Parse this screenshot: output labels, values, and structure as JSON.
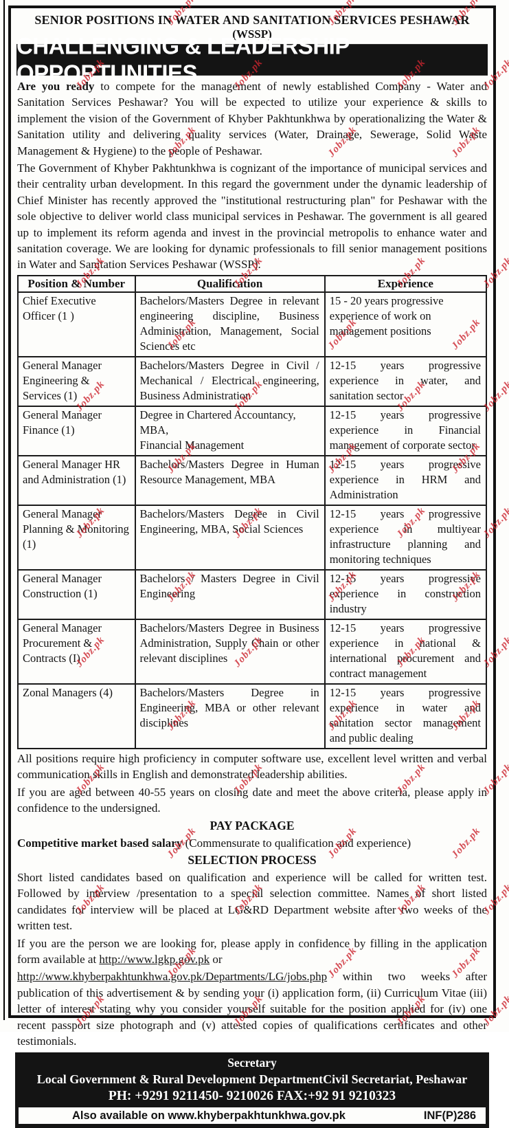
{
  "watermark": {
    "text": "Jobz.pk",
    "color": "#cc2630"
  },
  "header": {
    "title_line1": "SENIOR POSITIONS IN WATER AND SANITATION SERVICES PESHAWAR",
    "title_line2": "(WSSP)",
    "banner": "CHALLENGING & LEADERSHIP OPPORTUNITIES"
  },
  "intro": {
    "p1_lead": "Are you ready",
    "p1_rest": " to compete for the management of newly established Company - Water and Sanitation Services Peshawar? You will be expected to utilize your experience & skills to implement the vision of the Government of Khyber Pakhtunkhwa by operationalizing the Water & Sanitation utility and delivering quality services (Water, Drainage, Sewerage, Solid Waste Management & Hygiene) to the people of Peshawar.",
    "p2": "The Government of Khyber Pakhtunkhwa is cognizant of the importance of municipal services and their centrality urban development. In this regard the government under the dynamic leadership of Chief Minister has recently approved the \"institutional restructuring plan\" for Peshawar with the sole objective to deliver world class municipal services in Peshawar. The government is all geared up to implement its reform agenda and invest in the provincial metropolis to enhance water and sanitation coverage. We are looking for dynamic professionals to fill senior management positions in Water and Sanitation Services Peshawar (WSSP)."
  },
  "table": {
    "headers": [
      "Position & Number",
      "Qualification",
      "Experience"
    ],
    "rows": [
      {
        "position": "Chief Executive Officer (1 )",
        "qualification": "Bachelors/Masters Degree in relevant engineering discipline, Business Administration, Management, Social Sciences etc",
        "experience": "15 - 20 years progressive\nexperience of work on\nmanagement positions"
      },
      {
        "position": "General Manager Engineering & Services (1)",
        "qualification": "Bachelors/Masters Degree in Civil / Mechanical / Electrical engineering, Business Administration",
        "experience": "12-15 years progressive experience in water, and sanitation sector"
      },
      {
        "position": "General Manager Finance (1)",
        "qualification": "Degree in Chartered Accountancy,\nMBA,\nFinancial Management",
        "experience": "12-15 years progressive experience in Financial management of corporate sector"
      },
      {
        "position": "General Manager HR and Administration (1)",
        "qualification": "Bachelors/Masters Degree in Human Resource Management, MBA",
        "experience": "12-15 years progressive experience in HRM and Administration"
      },
      {
        "position": "General Manager Planning & Monitoring (1)",
        "qualification": "Bachelors/Masters Degree in Civil Engineering, MBA, Social Sciences",
        "experience": "12-15 years progressive experience in multiyear infrastructure planning and monitoring techniques"
      },
      {
        "position": "General Manager Construction (1)",
        "qualification": "Bachelors / Masters Degree in Civil Engineering",
        "experience": "12-15 years progressive experience in construction industry"
      },
      {
        "position": "General Manager Procurement & Contracts (I)",
        "qualification": "Bachelors/Masters Degree in Business Administration, Supply Chain or other relevant disciplines",
        "experience": "12-15 years progressive experience in national & international procurement and contract management"
      },
      {
        "position": "Zonal Managers (4)",
        "qualification": "Bachelors/Masters Degree in Engineering, MBA or other relevant disciplines",
        "experience": "12-15 years progressive experience in water and sanitation sector management and public dealing"
      }
    ]
  },
  "requirements": {
    "p1": "All positions require high proficiency in computer software use, excellent level written and verbal communication skills in English and demonstrated leadership abilities.",
    "p2": "If you are aged between 40-55 years on closing date and meet the above criteria, please apply in confidence to the undersigned."
  },
  "pay_package": {
    "heading": "PAY PACKAGE",
    "lead": "Competitive market based salary",
    "rest": " (Commensurate to qualification and experience)"
  },
  "selection": {
    "heading": "SELECTION PROCESS",
    "p1": "Short listed candidates based on qualification and experience will be called for written test. Followed by interview /presentation to a special selection committee. Names of short listed candidates for interview will be placed at LG&RD Department website after two weeks of the written test.",
    "p2_pre": "If you are the person we are looking for, please apply in confidence by filling in the application form available at ",
    "url1": "http://www.lgkp.gov.pk",
    "p2_post": " or",
    "url2": "http://www.khyberpakhtunkhwa.gov.pk/Departments/LG/jobs.php",
    "p3_post": " within two weeks after publication of this advertisement & by sending your (i) application form, (ii) Curriculum Vitae (iii) letter of interest stating why you consider yourself suitable for the position applied for (iv) one recent passport size photograph and (v) attested copies of qualifications certificates and other testimonials."
  },
  "footer": {
    "signatory": "Secretary",
    "department": "Local Government & Rural Development Department",
    "secretariat": "Civil Secretariat, Peshawar",
    "phone": "PH: +9291 9211450- 9210026 FAX:+92 91 9210323",
    "availability": "Also available on www.khyberpakhtunkhwa.gov.pk",
    "ref": "INF(P)286"
  }
}
